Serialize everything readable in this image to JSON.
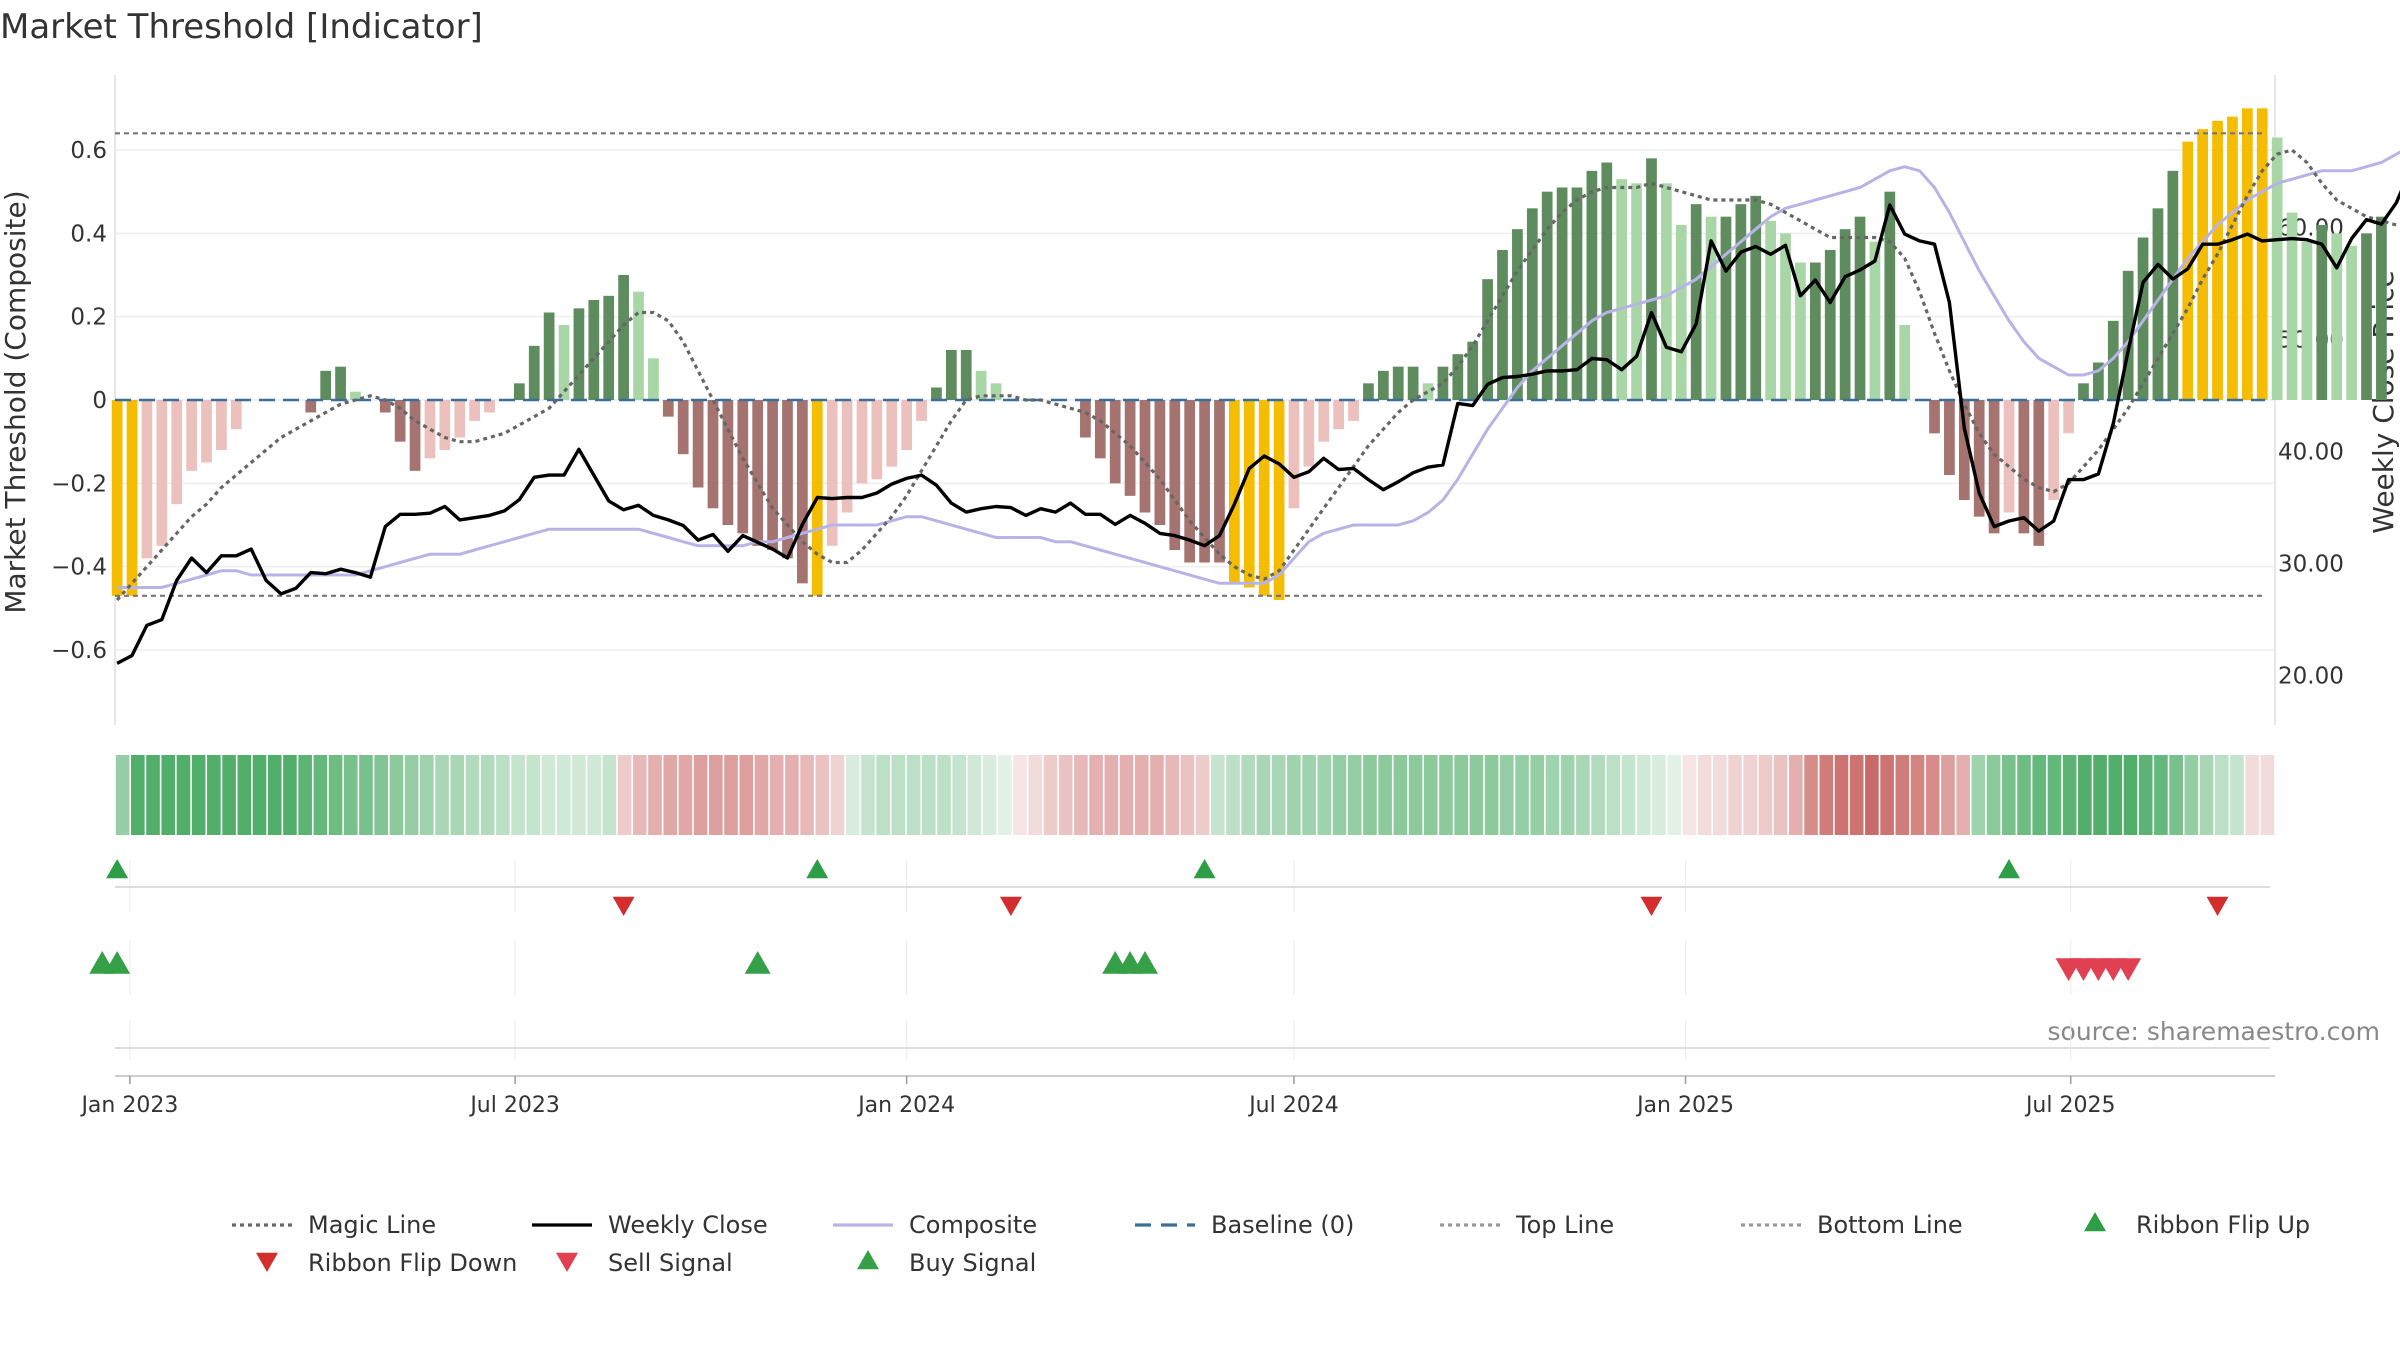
{
  "title": "Market Threshold [Indicator]",
  "source": "source: sharemaestro.com",
  "colors": {
    "gold": "#F5BD02",
    "green_strong": "#5E8C5E",
    "green_weak": "#A8D6A6",
    "red_strong": "#A57370",
    "red_weak": "#EBC0BD",
    "magic": "#666666",
    "close": "#000000",
    "composite": "#B8B3E6",
    "baseline": "#3B6E99",
    "ref_line": "#777777",
    "flip_up": "#2E9E46",
    "flip_down": "#D22E2E",
    "sell": "#E0404F",
    "buy": "#35A047",
    "source_text": "#888888"
  },
  "chart_data": {
    "type": "bar",
    "x_type": "date",
    "x_range": [
      "2022-12-25",
      "2025-10-05"
    ],
    "ylabel_left": "Market Threshold (Composite)",
    "ylabel_right": "Weekly Close Price",
    "ylim_left": [
      -0.78,
      0.78
    ],
    "ylim_right": [
      15.6,
      73.6
    ],
    "yticks_left": [
      {
        "v": 0.6,
        "label": "0.6"
      },
      {
        "v": 0.4,
        "label": "0.4"
      },
      {
        "v": 0.2,
        "label": "0.2"
      },
      {
        "v": 0,
        "label": "0"
      },
      {
        "v": -0.2,
        "label": "−0.2"
      },
      {
        "v": -0.4,
        "label": "−0.4"
      },
      {
        "v": -0.6,
        "label": "−0.6"
      }
    ],
    "yticks_right": [
      {
        "v": 60,
        "label": "60.00"
      },
      {
        "v": 50,
        "label": "50.00"
      },
      {
        "v": 40,
        "label": "40.00"
      },
      {
        "v": 30,
        "label": "30.00"
      },
      {
        "v": 20,
        "label": "20.00"
      }
    ],
    "xticks": [
      {
        "date": "2023-01-01",
        "label": "Jan 2023"
      },
      {
        "date": "2023-07-01",
        "label": "Jul 2023"
      },
      {
        "date": "2024-01-01",
        "label": "Jan 2024"
      },
      {
        "date": "2024-07-01",
        "label": "Jul 2024"
      },
      {
        "date": "2025-01-01",
        "label": "Jan 2025"
      },
      {
        "date": "2025-07-01",
        "label": "Jul 2025"
      }
    ],
    "top_line": 0.64,
    "bottom_line": -0.47,
    "baseline": 0,
    "start_week": "2022-12-26",
    "composite_bars": [
      -0.47,
      -0.47,
      -0.38,
      -0.35,
      -0.25,
      -0.17,
      -0.15,
      -0.12,
      -0.07,
      0,
      0,
      0,
      0,
      -0.03,
      0.07,
      0.08,
      0.02,
      0,
      -0.03,
      -0.1,
      -0.17,
      -0.14,
      -0.12,
      -0.09,
      -0.05,
      -0.03,
      0,
      0.04,
      0.13,
      0.21,
      0.18,
      0.22,
      0.24,
      0.25,
      0.3,
      0.26,
      0.1,
      -0.04,
      -0.13,
      -0.21,
      -0.26,
      -0.3,
      -0.32,
      -0.35,
      -0.36,
      -0.38,
      -0.44,
      -0.47,
      -0.35,
      -0.27,
      -0.2,
      -0.19,
      -0.16,
      -0.12,
      -0.05,
      0.03,
      0.12,
      0.12,
      0.07,
      0.04,
      0,
      0,
      0,
      0,
      0,
      -0.09,
      -0.14,
      -0.2,
      -0.23,
      -0.27,
      -0.3,
      -0.36,
      -0.39,
      -0.39,
      -0.39,
      -0.44,
      -0.45,
      -0.47,
      -0.48,
      -0.26,
      -0.16,
      -0.1,
      -0.07,
      -0.05,
      0.04,
      0.07,
      0.08,
      0.08,
      0.04,
      0.08,
      0.11,
      0.14,
      0.29,
      0.36,
      0.41,
      0.46,
      0.5,
      0.51,
      0.51,
      0.55,
      0.57,
      0.53,
      0.52,
      0.58,
      0.52,
      0.42,
      0.47,
      0.44,
      0.44,
      0.47,
      0.49,
      0.43,
      0.4,
      0.33,
      0.33,
      0.36,
      0.41,
      0.44,
      0.38,
      0.5,
      0.18,
      0,
      -0.08,
      -0.18,
      -0.24,
      -0.28,
      -0.32,
      -0.27,
      -0.32,
      -0.35,
      -0.24,
      -0.08,
      0.04,
      0.09,
      0.19,
      0.31,
      0.39,
      0.46,
      0.55,
      0.62,
      0.65,
      0.67,
      0.68,
      0.7,
      0.7,
      0.63,
      0.45,
      0.38,
      0.42,
      0.4,
      0.37,
      0.4,
      0.44
    ],
    "bar_class": "SSSSSSSSSSSSSSSSSSSSSSSSSSSSSSSSSSSSSSSSSSSSSSSSSSSSSSSSSSSSSSSSSSSSSSSSSSSSSSSSSSSSSSSSSSSSSSSSSSSSSSSSSSSSSSSSSSSSSSSSSSSSSSSSSSSSSSSSSSSSSSSSSSSS",
    "gold_weeks": [
      0,
      1,
      47,
      75,
      76,
      77,
      78,
      139,
      140,
      141,
      142,
      143,
      144
    ],
    "magic_line": [
      -0.48,
      -0.44,
      -0.4,
      -0.36,
      -0.32,
      -0.28,
      -0.25,
      -0.21,
      -0.18,
      -0.15,
      -0.12,
      -0.09,
      -0.07,
      -0.05,
      -0.03,
      -0.01,
      0,
      0.01,
      0,
      -0.02,
      -0.05,
      -0.07,
      -0.09,
      -0.1,
      -0.1,
      -0.09,
      -0.08,
      -0.06,
      -0.04,
      -0.02,
      0.02,
      0.06,
      0.1,
      0.14,
      0.18,
      0.21,
      0.21,
      0.19,
      0.14,
      0.07,
      0,
      -0.07,
      -0.14,
      -0.2,
      -0.26,
      -0.3,
      -0.34,
      -0.37,
      -0.39,
      -0.39,
      -0.36,
      -0.32,
      -0.28,
      -0.23,
      -0.17,
      -0.11,
      -0.05,
      0,
      0.01,
      0.01,
      0.01,
      0,
      0,
      -0.01,
      -0.02,
      -0.03,
      -0.05,
      -0.08,
      -0.11,
      -0.15,
      -0.19,
      -0.24,
      -0.29,
      -0.33,
      -0.37,
      -0.4,
      -0.42,
      -0.43,
      -0.41,
      -0.36,
      -0.31,
      -0.26,
      -0.21,
      -0.16,
      -0.11,
      -0.07,
      -0.03,
      0,
      0.02,
      0.04,
      0.08,
      0.13,
      0.19,
      0.25,
      0.31,
      0.36,
      0.41,
      0.45,
      0.48,
      0.5,
      0.51,
      0.51,
      0.51,
      0.52,
      0.51,
      0.5,
      0.49,
      0.48,
      0.48,
      0.48,
      0.48,
      0.47,
      0.45,
      0.43,
      0.41,
      0.39,
      0.39,
      0.39,
      0.39,
      0.38,
      0.34,
      0.26,
      0.16,
      0.07,
      -0.01,
      -0.08,
      -0.13,
      -0.16,
      -0.19,
      -0.21,
      -0.22,
      -0.2,
      -0.16,
      -0.12,
      -0.07,
      -0.02,
      0.04,
      0.1,
      0.16,
      0.22,
      0.29,
      0.35,
      0.42,
      0.49,
      0.55,
      0.59,
      0.6,
      0.57,
      0.52,
      0.48,
      0.46,
      0.44,
      0.43,
      0.42
    ],
    "composite_line": [
      -0.45,
      -0.45,
      -0.45,
      -0.45,
      -0.44,
      -0.43,
      -0.42,
      -0.41,
      -0.41,
      -0.42,
      -0.42,
      -0.42,
      -0.42,
      -0.42,
      -0.42,
      -0.42,
      -0.42,
      -0.41,
      -0.4,
      -0.39,
      -0.38,
      -0.37,
      -0.37,
      -0.37,
      -0.36,
      -0.35,
      -0.34,
      -0.33,
      -0.32,
      -0.31,
      -0.31,
      -0.31,
      -0.31,
      -0.31,
      -0.31,
      -0.31,
      -0.32,
      -0.33,
      -0.34,
      -0.35,
      -0.35,
      -0.35,
      -0.35,
      -0.34,
      -0.34,
      -0.33,
      -0.32,
      -0.31,
      -0.3,
      -0.3,
      -0.3,
      -0.3,
      -0.29,
      -0.28,
      -0.28,
      -0.29,
      -0.3,
      -0.31,
      -0.32,
      -0.33,
      -0.33,
      -0.33,
      -0.33,
      -0.34,
      -0.34,
      -0.35,
      -0.36,
      -0.37,
      -0.38,
      -0.39,
      -0.4,
      -0.41,
      -0.42,
      -0.43,
      -0.44,
      -0.44,
      -0.44,
      -0.44,
      -0.42,
      -0.38,
      -0.34,
      -0.32,
      -0.31,
      -0.3,
      -0.3,
      -0.3,
      -0.3,
      -0.29,
      -0.27,
      -0.24,
      -0.19,
      -0.13,
      -0.07,
      -0.02,
      0.03,
      0.07,
      0.1,
      0.13,
      0.16,
      0.19,
      0.21,
      0.22,
      0.23,
      0.24,
      0.25,
      0.27,
      0.29,
      0.32,
      0.35,
      0.38,
      0.41,
      0.44,
      0.46,
      0.47,
      0.48,
      0.49,
      0.5,
      0.51,
      0.53,
      0.55,
      0.56,
      0.55,
      0.51,
      0.45,
      0.38,
      0.31,
      0.25,
      0.19,
      0.14,
      0.1,
      0.08,
      0.06,
      0.06,
      0.07,
      0.1,
      0.14,
      0.19,
      0.24,
      0.29,
      0.34,
      0.38,
      0.42,
      0.45,
      0.48,
      0.5,
      0.52,
      0.53,
      0.54,
      0.55,
      0.55,
      0.55,
      0.56,
      0.57,
      0.59,
      0.61,
      0.63
    ],
    "weekly_close": [
      21.1,
      21.8,
      24.5,
      25,
      28.5,
      30.5,
      29.2,
      30.7,
      30.7,
      31.3,
      28.5,
      27.3,
      27.8,
      29.2,
      29.1,
      29.5,
      29.2,
      28.8,
      33.3,
      34.4,
      34.4,
      34.5,
      35.1,
      33.9,
      34.1,
      34.3,
      34.7,
      35.7,
      37.7,
      37.9,
      37.9,
      40.2,
      37.9,
      35.6,
      34.8,
      35.2,
      34.3,
      33.9,
      33.4,
      32.1,
      32.6,
      31.1,
      32.5,
      31.9,
      31.3,
      30.5,
      33.5,
      35.9,
      35.8,
      35.9,
      35.9,
      36.3,
      37.1,
      37.6,
      37.9,
      37,
      35.4,
      34.6,
      34.9,
      35.1,
      35,
      34.3,
      34.9,
      34.6,
      35.4,
      34.4,
      34.4,
      33.5,
      34.3,
      33.6,
      32.7,
      32.5,
      32.1,
      31.6,
      32.5,
      35.3,
      38.5,
      39.6,
      38.9,
      37.7,
      38.2,
      39.4,
      38.4,
      38.5,
      37.5,
      36.6,
      37.3,
      38.1,
      38.6,
      38.8,
      44.3,
      44.1,
      46,
      46.6,
      46.7,
      46.9,
      47.2,
      47.2,
      47.3,
      48.3,
      48.2,
      47.3,
      48.5,
      52.4,
      49.3,
      48.9,
      51.4,
      58.8,
      56.1,
      57.8,
      58.3,
      57.6,
      58.4,
      53.9,
      55.3,
      53.3,
      55.6,
      56.2,
      57,
      62,
      59.4,
      58.8,
      58.5,
      53.3,
      42.1,
      36.3,
      33.3,
      33.8,
      34.1,
      32.9,
      33.8,
      37.5,
      37.5,
      38,
      42.5,
      49,
      55.1,
      56.7,
      55.4,
      56.3,
      58.5,
      58.5,
      58.9,
      59.4,
      58.8,
      58.9,
      59,
      58.9,
      58.5,
      56.4,
      59,
      60.7,
      60.3,
      62.2,
      65.3,
      66.8
    ],
    "ribbon": {
      "values": [
        0.55,
        0.9,
        0.9,
        0.9,
        0.9,
        0.9,
        0.9,
        0.9,
        0.9,
        0.9,
        0.9,
        0.9,
        0.85,
        0.8,
        0.75,
        0.7,
        0.7,
        0.65,
        0.6,
        0.55,
        0.5,
        0.45,
        0.45,
        0.4,
        0.4,
        0.35,
        0.3,
        0.3,
        0.25,
        0.25,
        0.25,
        0.25,
        0.3,
        -0.3,
        -0.4,
        -0.45,
        -0.5,
        -0.5,
        -0.55,
        -0.55,
        -0.55,
        -0.55,
        -0.5,
        -0.45,
        -0.45,
        -0.4,
        -0.35,
        -0.25,
        0.2,
        0.3,
        0.35,
        0.35,
        0.35,
        0.35,
        0.35,
        0.3,
        0.25,
        0.2,
        0.15,
        -0.15,
        -0.2,
        -0.3,
        -0.35,
        -0.4,
        -0.45,
        -0.45,
        -0.45,
        -0.45,
        -0.45,
        -0.4,
        -0.35,
        -0.3,
        0.3,
        0.35,
        0.4,
        0.45,
        0.45,
        0.5,
        0.5,
        0.5,
        0.55,
        0.55,
        0.6,
        0.6,
        0.6,
        0.6,
        0.6,
        0.6,
        0.6,
        0.6,
        0.6,
        0.55,
        0.55,
        0.55,
        0.5,
        0.5,
        0.45,
        0.4,
        0.35,
        0.3,
        0.25,
        0.2,
        0.15,
        -0.15,
        -0.2,
        -0.2,
        -0.25,
        -0.25,
        -0.3,
        -0.35,
        -0.45,
        -0.65,
        -0.75,
        -0.8,
        -0.8,
        -0.85,
        -0.8,
        -0.75,
        -0.7,
        -0.65,
        -0.55,
        -0.45,
        0.5,
        0.6,
        0.7,
        0.75,
        0.8,
        0.8,
        0.85,
        0.9,
        0.9,
        0.9,
        0.9,
        0.85,
        0.8,
        0.7,
        0.55,
        0.45,
        0.35,
        0.3,
        -0.2,
        -0.2,
        -0.2
      ],
      "weeks_shown": 142
    },
    "ribbon_flip_up": [
      "2022-12-26",
      "2023-11-20",
      "2024-05-20",
      "2025-06-02"
    ],
    "ribbon_flip_down": [
      "2023-08-21",
      "2024-02-19",
      "2024-12-16",
      "2025-09-08"
    ],
    "buy_signal": [
      "2022-12-19",
      "2022-12-26",
      "2023-10-23",
      "2024-04-08",
      "2024-04-15",
      "2024-04-22"
    ],
    "sell_signal": [
      "2025-06-30",
      "2025-07-07",
      "2025-07-14",
      "2025-07-21",
      "2025-07-28"
    ],
    "legend": [
      {
        "name": "Magic Line",
        "kind": "dotted",
        "color": "#666666"
      },
      {
        "name": "Weekly Close",
        "kind": "solid",
        "color": "#000000"
      },
      {
        "name": "Composite",
        "kind": "solid",
        "color": "#B8B3E6"
      },
      {
        "name": "Baseline (0)",
        "kind": "dashed",
        "color": "#3B6E99"
      },
      {
        "name": "Top Line",
        "kind": "dotted",
        "color": "#999999"
      },
      {
        "name": "Bottom Line",
        "kind": "dotted",
        "color": "#999999"
      },
      {
        "name": "Ribbon Flip Up",
        "kind": "tri-up",
        "color": "#2E9E46"
      },
      {
        "name": "Ribbon Flip Down",
        "kind": "tri-down",
        "color": "#D22E2E"
      },
      {
        "name": "Sell Signal",
        "kind": "tri-down",
        "color": "#E0404F"
      },
      {
        "name": "Buy Signal",
        "kind": "tri-up",
        "color": "#35A047"
      }
    ]
  }
}
